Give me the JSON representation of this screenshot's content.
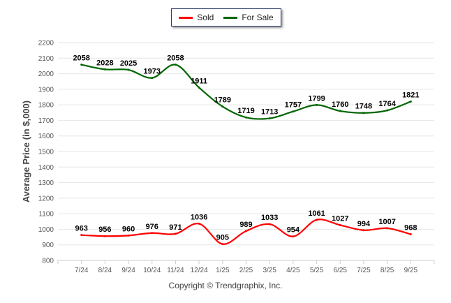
{
  "chart_data": {
    "type": "line",
    "title": "",
    "xlabel": "",
    "ylabel": "Average Price (in $,000)",
    "ylim": [
      800,
      2200
    ],
    "yticks": [
      800,
      900,
      1000,
      1100,
      1200,
      1300,
      1400,
      1500,
      1600,
      1700,
      1800,
      1900,
      2000,
      2100,
      2200
    ],
    "grid": true,
    "legend_position": "top-center",
    "categories": [
      "7/24",
      "8/24",
      "9/24",
      "10/24",
      "11/24",
      "12/24",
      "1/25",
      "2/25",
      "3/25",
      "4/25",
      "5/25",
      "6/25",
      "7/25",
      "8/25",
      "9/25"
    ],
    "series": [
      {
        "name": "Sold",
        "color": "#ff0000",
        "values": [
          963,
          956,
          960,
          976,
          971,
          1036,
          905,
          989,
          1033,
          954,
          1061,
          1027,
          994,
          1007,
          968
        ]
      },
      {
        "name": "For Sale",
        "color": "#006600",
        "values": [
          2058,
          2028,
          2025,
          1973,
          2058,
          1911,
          1789,
          1719,
          1713,
          1757,
          1799,
          1760,
          1748,
          1764,
          1821
        ]
      }
    ]
  },
  "footer": {
    "copyright": "Copyright © Trendgraphix, Inc."
  }
}
